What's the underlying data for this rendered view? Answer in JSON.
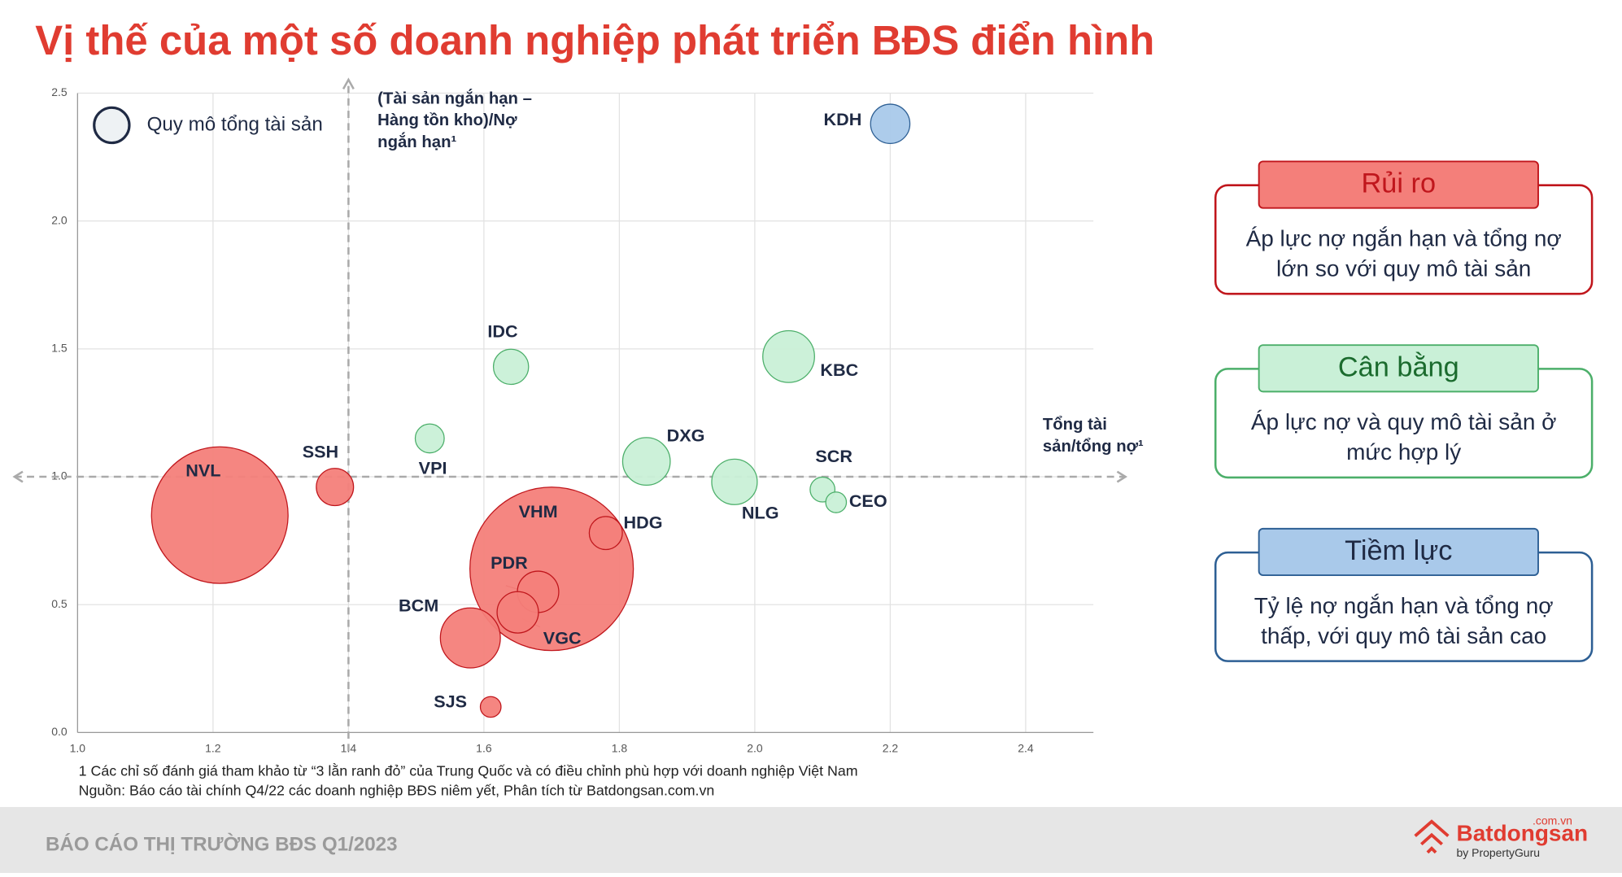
{
  "title": "Vị thế của một số doanh nghiệp phát triển BĐS điển hình",
  "chart_data": {
    "type": "bubble",
    "xlim": [
      1.0,
      2.5
    ],
    "ylim": [
      0,
      2.5
    ],
    "xticks": [
      {
        "value": 1.0,
        "label": "1.0"
      },
      1.2,
      1.4,
      1.6,
      1.8,
      {
        "value": 2.0,
        "label": "2.0"
      },
      2.2,
      2.4
    ],
    "yticks": [
      {
        "value": 0,
        "label": "0.0"
      },
      0.5,
      {
        "value": 1.0,
        "label": "1.0"
      },
      1.5,
      {
        "value": 2.0,
        "label": "2.0"
      },
      2.5
    ],
    "grid": true,
    "y_label": [
      "(Tài sản ngắn hạn –",
      "Hàng tồn kho)/Nợ",
      "ngắn hạn¹"
    ],
    "x_label": [
      "Tổng tài",
      "sản/tổng nợ¹"
    ],
    "ref_x": 1.4,
    "ref_y": 1.0,
    "size_legend": "Quy mô tổng tài sản",
    "series": [
      {
        "name": "Rủi ro",
        "color": "#f47f7a",
        "stroke": "#c0161c",
        "text_color": "#c0161c",
        "description": [
          "Áp lực nợ ngắn hạn và tổng nợ",
          "lớn so với quy mô tài sản"
        ],
        "labels": [
          "NVL",
          "VHM",
          "SSH",
          "HDG",
          "BCM",
          "PDR",
          "VGC",
          "SJS"
        ],
        "x": [
          1.21,
          1.7,
          1.38,
          1.78,
          1.58,
          1.68,
          1.65,
          1.61
        ],
        "y": [
          0.85,
          0.64,
          0.96,
          0.78,
          0.37,
          0.55,
          0.47,
          0.1
        ],
        "sizes": [
          66,
          79,
          18,
          16,
          29,
          20,
          20,
          10
        ]
      },
      {
        "name": "Cân bằng",
        "color": "#c9f0d7",
        "stroke": "#4caf6a",
        "text_color": "#1b6b2e",
        "description": [
          "Áp lực nợ và quy mô tài sản ở",
          "mức hợp lý"
        ],
        "labels": [
          "VPI",
          "IDC",
          "DXG",
          "KBC",
          "NLG",
          "SCR",
          "CEO"
        ],
        "x": [
          1.52,
          1.64,
          1.84,
          2.05,
          1.97,
          2.1,
          2.12
        ],
        "y": [
          1.15,
          1.43,
          1.06,
          1.47,
          0.98,
          0.95,
          0.9
        ],
        "sizes": [
          14,
          17,
          23,
          25,
          22,
          12,
          10
        ]
      },
      {
        "name": "Tiềm lực",
        "color": "#a9c9ea",
        "stroke": "#2d5f94",
        "text_color": "#1f2a44",
        "description": [
          "Tỷ lệ nợ ngắn hạn và tổng nợ",
          "thấp, với quy mô tài sản cao"
        ],
        "labels": [
          "KDH"
        ],
        "x": [
          2.2
        ],
        "y": [
          2.38
        ],
        "sizes": [
          19
        ]
      }
    ]
  },
  "footnote": "1 Các chỉ số đánh giá tham khảo từ “3 lằn ranh đỏ” của Trung Quốc và có điều chỉnh phù hợp với doanh nghiệp Việt Nam",
  "source": "Nguồn: Báo cáo tài chính Q4/22 các doanh nghiệp BĐS niêm yết, Phân tích từ Batdongsan.com.vn",
  "footer": {
    "report": "BÁO CÁO THỊ TRƯỜNG BĐS Q1/2023",
    "brand": "Batdongsan",
    "domain": ".com.vn",
    "byline": "by PropertyGuru"
  }
}
